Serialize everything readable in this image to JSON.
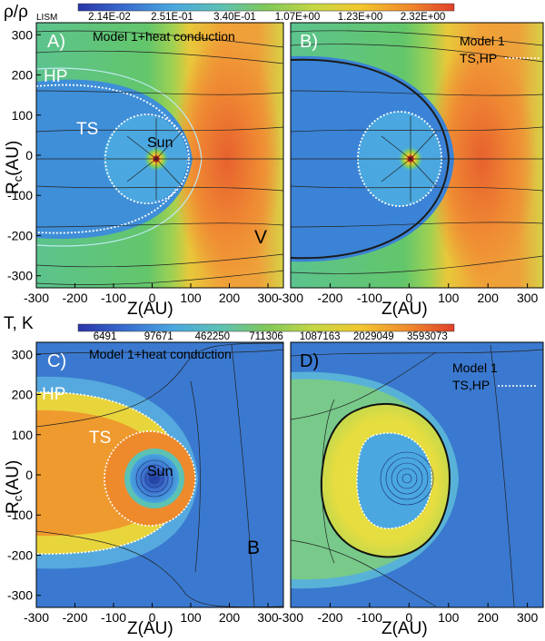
{
  "figure": {
    "density_colorbar": {
      "label": "ρ/ρ",
      "label_sub": "LISM",
      "values": [
        "2.14E-02",
        "2.51E-01",
        "3.40E-01",
        "1.07E+00",
        "1.23E+00",
        "2.32E+00"
      ],
      "colors": [
        "#2a34a8",
        "#3a6fd0",
        "#49a6e0",
        "#5cc2b4",
        "#80c85a",
        "#c7d743",
        "#f2c72e",
        "#f08a2c",
        "#e0402a"
      ]
    },
    "temperature_colorbar": {
      "label": "T, K",
      "values": [
        "6491",
        "97671",
        "462250",
        "711306",
        "1087163",
        "2029049",
        "3593073"
      ],
      "colors": [
        "#2a34a8",
        "#3a6fd0",
        "#49a6e0",
        "#5cc2b4",
        "#80c85a",
        "#c7d743",
        "#f2c72e",
        "#f08a2c",
        "#e0402a"
      ]
    },
    "panels": [
      {
        "id": "A",
        "panel_label": "A)",
        "title": "Model 1+heat conduction",
        "quantity": "density"
      },
      {
        "id": "B",
        "panel_label": "B)",
        "title": "Model 1",
        "legend": "TS,HP",
        "quantity": "density"
      },
      {
        "id": "C",
        "panel_label": "C)",
        "title": "Model 1+heat conduction",
        "quantity": "temperature"
      },
      {
        "id": "D",
        "panel_label": "D)",
        "title": "Model 1",
        "legend": "TS,HP",
        "quantity": "temperature"
      }
    ],
    "annotations": {
      "hp": "HP",
      "ts": "TS",
      "sun": "Sun",
      "v": "V",
      "b": "B"
    },
    "xlabel": "Z(AU)",
    "ylabel_main": "R",
    "ylabel_sub": "c",
    "ylabel_unit": "(AU)"
  },
  "chart_data": [
    {
      "type": "heatmap",
      "panel": "A",
      "xlabel": "Z(AU)",
      "ylabel": "Rc(AU)",
      "xlim": [
        -300,
        340
      ],
      "ylim": [
        -330,
        330
      ],
      "xticks": [
        -300,
        -200,
        -100,
        0,
        100,
        200,
        300
      ],
      "yticks": [
        -300,
        -200,
        -100,
        0,
        100,
        200,
        300
      ],
      "quantity": "ρ/ρLISM"
    },
    {
      "type": "heatmap",
      "panel": "B",
      "xlabel": "Z(AU)",
      "xlim": [
        -300,
        340
      ],
      "ylim": [
        -330,
        330
      ],
      "xticks": [
        -300,
        -200,
        -100,
        0,
        100,
        200,
        300
      ],
      "quantity": "ρ/ρLISM"
    },
    {
      "type": "heatmap",
      "panel": "C",
      "xlabel": "Z(AU)",
      "ylabel": "Rc(AU)",
      "xlim": [
        -300,
        340
      ],
      "ylim": [
        -330,
        330
      ],
      "xticks": [
        -300,
        -200,
        -100,
        0,
        100,
        200,
        300
      ],
      "yticks": [
        -300,
        -200,
        -100,
        0,
        100,
        200,
        300
      ],
      "quantity": "T, K"
    },
    {
      "type": "heatmap",
      "panel": "D",
      "xlabel": "Z(AU)",
      "xlim": [
        -300,
        340
      ],
      "ylim": [
        -330,
        330
      ],
      "xticks": [
        -300,
        -200,
        -100,
        0,
        100,
        200,
        300
      ],
      "quantity": "T, K"
    }
  ]
}
